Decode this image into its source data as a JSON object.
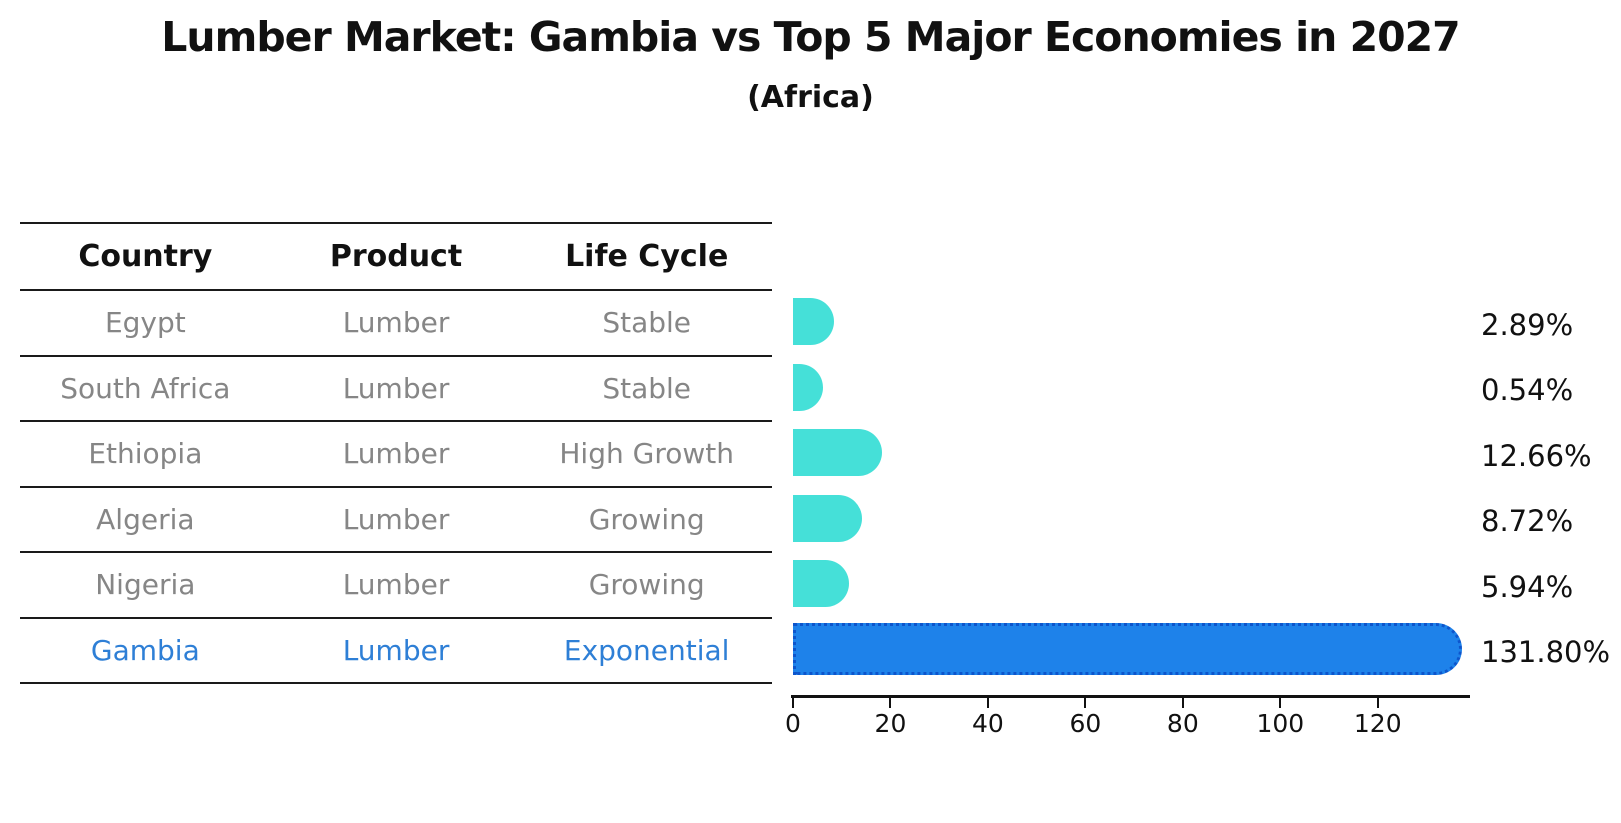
{
  "title": "Lumber Market: Gambia vs Top 5 Major Economies in 2027",
  "subtitle": "(Africa)",
  "table": {
    "headers": [
      "Country",
      "Product",
      "Life Cycle"
    ],
    "rows": [
      {
        "country": "Egypt",
        "product": "Lumber",
        "life_cycle": "Stable",
        "highlight": false
      },
      {
        "country": "South Africa",
        "product": "Lumber",
        "life_cycle": "Stable",
        "highlight": false
      },
      {
        "country": "Ethiopia",
        "product": "Lumber",
        "life_cycle": "High Growth",
        "highlight": false
      },
      {
        "country": "Algeria",
        "product": "Lumber",
        "life_cycle": "Growing",
        "highlight": false
      },
      {
        "country": "Nigeria",
        "product": "Lumber",
        "life_cycle": "Growing",
        "highlight": false
      },
      {
        "country": "Gambia",
        "product": "Lumber",
        "life_cycle": "Exponential",
        "highlight": true
      }
    ]
  },
  "chart_data": {
    "type": "bar",
    "orientation": "horizontal",
    "title": "Lumber Market: Gambia vs Top 5 Major Economies in 2027",
    "subtitle": "(Africa)",
    "categories": [
      "Egypt",
      "South Africa",
      "Ethiopia",
      "Algeria",
      "Nigeria",
      "Gambia"
    ],
    "values": [
      2.89,
      0.54,
      12.66,
      8.72,
      5.94,
      131.8
    ],
    "value_labels": [
      "2.89%",
      "0.54%",
      "12.66%",
      "8.72%",
      "5.94%",
      "131.80%"
    ],
    "x_ticks": [
      0,
      20,
      40,
      60,
      80,
      100,
      120
    ],
    "xlim": [
      0,
      138.4
    ],
    "grid": false,
    "legend": false,
    "highlight_index": 5,
    "xlabel": "",
    "ylabel": ""
  },
  "colors": {
    "bar": "#45e0d8",
    "highlight_bar": "#1e82ea",
    "highlight_bar_border": "#0d55cc",
    "highlight_text": "#2e7fd6",
    "table_text": "#868686",
    "heading_text": "#111111",
    "line": "#1a1a1a"
  }
}
